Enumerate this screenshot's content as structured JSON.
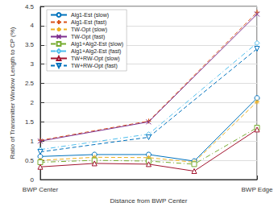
{
  "chart_data": {
    "type": "line",
    "x_label": "Distance from BWP Center",
    "y_label": "Ratio of Transmitter Window Length to CP (%)",
    "xlim": [
      0,
      1
    ],
    "xticks": [
      {
        "value": 0,
        "label": "BWP Center"
      },
      {
        "value": 1,
        "label": "BWP Edge"
      }
    ],
    "ylim": [
      0,
      4.5
    ],
    "yticks": [
      0,
      0.5,
      1,
      1.5,
      2,
      2.5,
      3,
      3.5,
      4,
      4.5
    ],
    "grid": true,
    "legend": "upper left",
    "series": [
      {
        "name": "Alg1-Est (slow)",
        "color": "#0072BD",
        "marker": "circle",
        "line_style": "solid",
        "x": [
          0,
          0.25,
          0.5,
          0.71,
          1
        ],
        "values": [
          0.6,
          0.65,
          0.65,
          0.48,
          2.12
        ]
      },
      {
        "name": "Alg1-Est (fast)",
        "color": "#D95319",
        "marker": "plus",
        "line_style": "dashed",
        "x": [
          0,
          0.5,
          1
        ],
        "values": [
          1.02,
          1.52,
          4.35
        ]
      },
      {
        "name": "TW-Opt (slow)",
        "color": "#EDB120",
        "marker": "asterisk",
        "line_style": "dashed",
        "x": [
          0,
          0.25,
          0.5,
          0.71,
          1
        ],
        "values": [
          0.5,
          0.58,
          0.57,
          0.45,
          2.02
        ]
      },
      {
        "name": "TW-Opt (fast)",
        "color": "#7E2F8E",
        "marker": "x",
        "line_style": "solid",
        "x": [
          0,
          0.5,
          1
        ],
        "values": [
          1.0,
          1.5,
          4.3
        ]
      },
      {
        "name": "Alg1+Alg2-Est (slow)",
        "color": "#77AC30",
        "marker": "square",
        "line_style": "dashdot",
        "x": [
          0,
          0.25,
          0.5,
          0.71,
          1
        ],
        "values": [
          0.45,
          0.5,
          0.48,
          0.4,
          1.35
        ]
      },
      {
        "name": "Alg1+Alg2-Est (fast)",
        "color": "#4DBEEE",
        "marker": "diamond",
        "line_style": "dashdot",
        "x": [
          0,
          0.5,
          1
        ],
        "values": [
          0.78,
          1.18,
          3.55
        ]
      },
      {
        "name": "TW+RW-Opt (slow)",
        "color": "#A2142F",
        "marker": "triangle",
        "line_style": "solid",
        "x": [
          0,
          0.25,
          0.5,
          0.71,
          1
        ],
        "values": [
          0.33,
          0.42,
          0.4,
          0.22,
          1.3
        ]
      },
      {
        "name": "TW+RW-Opt (fast)",
        "color": "#0072BD",
        "marker": "triangle-down",
        "line_style": "dashed",
        "x": [
          0,
          0.5,
          1
        ],
        "values": [
          0.72,
          1.1,
          3.4
        ]
      }
    ]
  }
}
